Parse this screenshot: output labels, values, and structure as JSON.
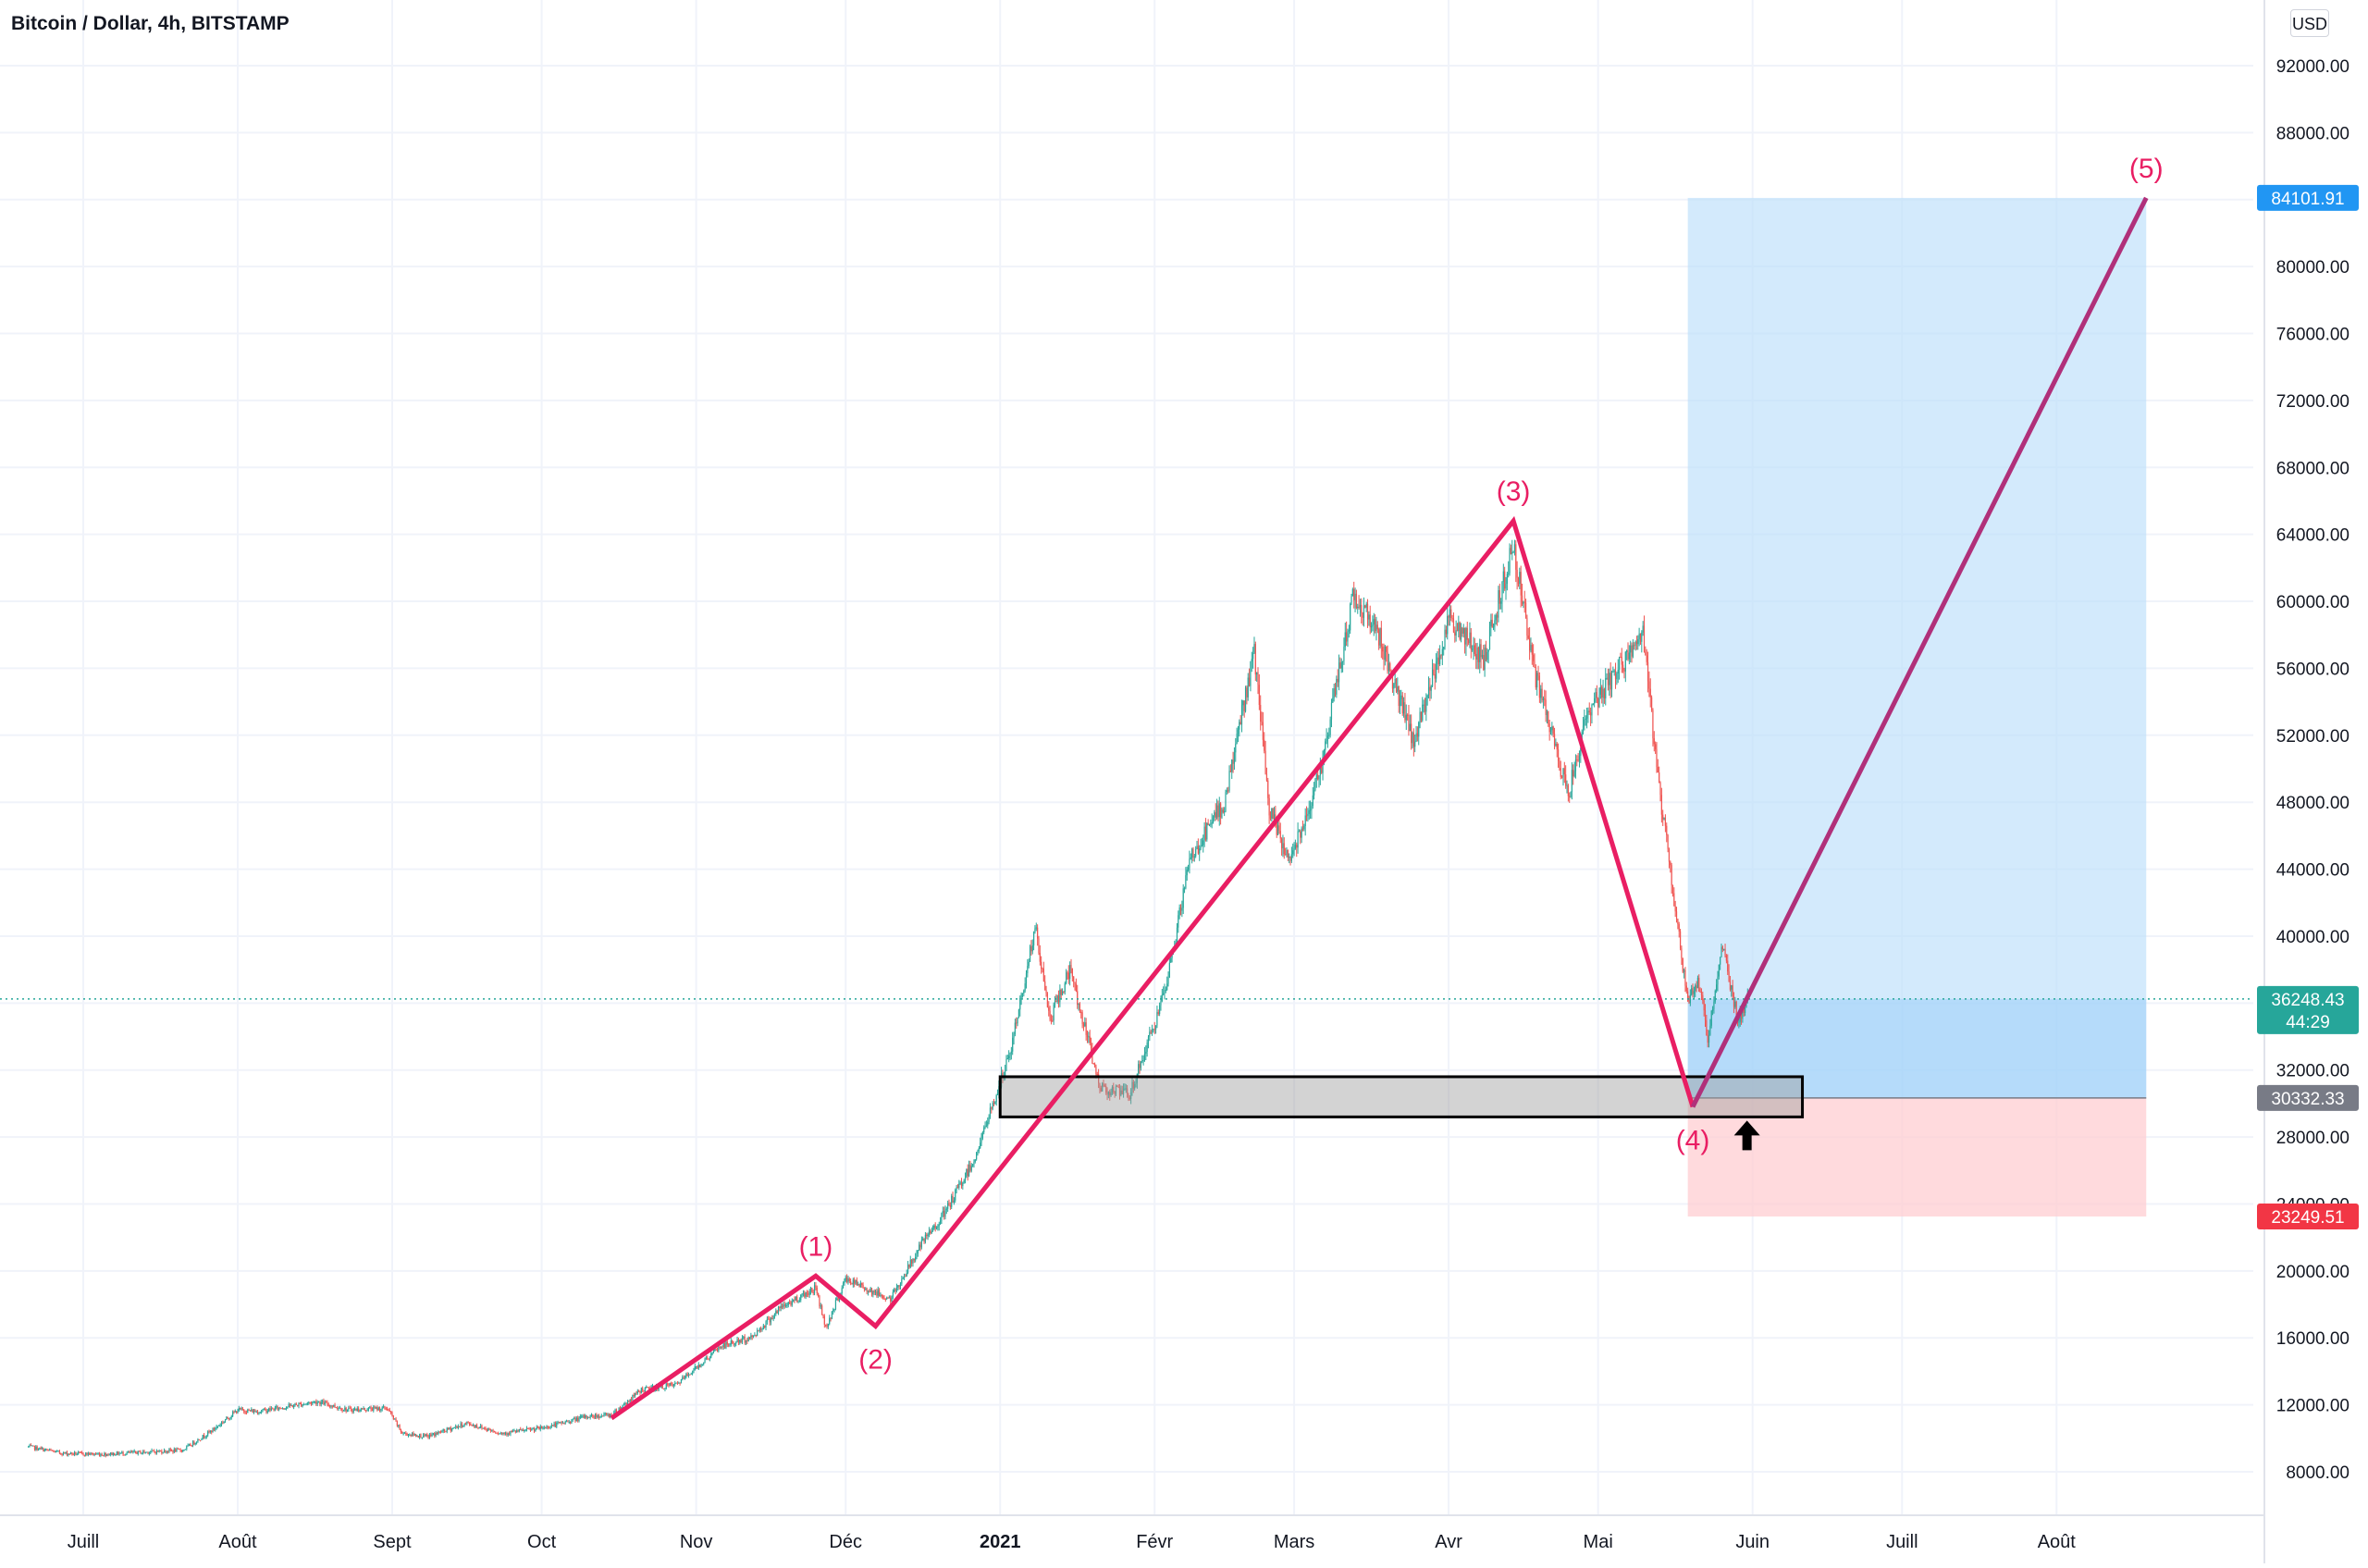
{
  "header": {
    "title": "Bitcoin / Dollar, 4h, BITSTAMP",
    "currency_button": "USD"
  },
  "chart_data": {
    "type": "candlestick",
    "title": "Bitcoin / Dollar, 4h, BITSTAMP",
    "currency": "USD",
    "ylim": [
      4800,
      95000
    ],
    "y_ticks": [
      {
        "value": 8000,
        "label": "8000.00"
      },
      {
        "value": 12000,
        "label": "12000.00"
      },
      {
        "value": 16000,
        "label": "16000.00"
      },
      {
        "value": 20000,
        "label": "20000.00"
      },
      {
        "value": 24000,
        "label": "24000.00"
      },
      {
        "value": 28000,
        "label": "28000.00"
      },
      {
        "value": 32000,
        "label": "32000.00"
      },
      {
        "value": 40000,
        "label": "40000.00"
      },
      {
        "value": 44000,
        "label": "44000.00"
      },
      {
        "value": 48000,
        "label": "48000.00"
      },
      {
        "value": 52000,
        "label": "52000.00"
      },
      {
        "value": 56000,
        "label": "56000.00"
      },
      {
        "value": 60000,
        "label": "60000.00"
      },
      {
        "value": 64000,
        "label": "64000.00"
      },
      {
        "value": 68000,
        "label": "68000.00"
      },
      {
        "value": 72000,
        "label": "72000.00"
      },
      {
        "value": 76000,
        "label": "76000.00"
      },
      {
        "value": 80000,
        "label": "80000.00"
      },
      {
        "value": 88000,
        "label": "88000.00"
      },
      {
        "value": 92000,
        "label": "92000.00"
      }
    ],
    "x_ticks": [
      {
        "date": "2020-07-01",
        "label": "Juill",
        "bold": false
      },
      {
        "date": "2020-08-01",
        "label": "Août",
        "bold": false
      },
      {
        "date": "2020-09-01",
        "label": "Sept",
        "bold": false
      },
      {
        "date": "2020-10-01",
        "label": "Oct",
        "bold": false
      },
      {
        "date": "2020-11-01",
        "label": "Nov",
        "bold": false
      },
      {
        "date": "2020-12-01",
        "label": "Déc",
        "bold": false
      },
      {
        "date": "2021-01-01",
        "label": "2021",
        "bold": true
      },
      {
        "date": "2021-02-01",
        "label": "Févr",
        "bold": false
      },
      {
        "date": "2021-03-01",
        "label": "Mars",
        "bold": false
      },
      {
        "date": "2021-04-01",
        "label": "Avr",
        "bold": false
      },
      {
        "date": "2021-05-01",
        "label": "Mai",
        "bold": false
      },
      {
        "date": "2021-06-01",
        "label": "Juin",
        "bold": false
      },
      {
        "date": "2021-07-01",
        "label": "Juill",
        "bold": false
      },
      {
        "date": "2021-08-01",
        "label": "Août",
        "bold": false
      }
    ],
    "price_path": [
      [
        "2020-06-20",
        9500
      ],
      [
        "2020-06-27",
        9100
      ],
      [
        "2020-07-05",
        9050
      ],
      [
        "2020-07-15",
        9200
      ],
      [
        "2020-07-21",
        9300
      ],
      [
        "2020-07-27",
        10500
      ],
      [
        "2020-08-01",
        11700
      ],
      [
        "2020-08-05",
        11600
      ],
      [
        "2020-08-17",
        12200
      ],
      [
        "2020-08-23",
        11700
      ],
      [
        "2020-08-31",
        11800
      ],
      [
        "2020-09-03",
        10300
      ],
      [
        "2020-09-08",
        10100
      ],
      [
        "2020-09-16",
        10900
      ],
      [
        "2020-09-23",
        10300
      ],
      [
        "2020-10-01",
        10600
      ],
      [
        "2020-10-10",
        11300
      ],
      [
        "2020-10-15",
        11400
      ],
      [
        "2020-10-21",
        12900
      ],
      [
        "2020-10-28",
        13200
      ],
      [
        "2020-11-06",
        15500
      ],
      [
        "2020-11-12",
        16000
      ],
      [
        "2020-11-18",
        17800
      ],
      [
        "2020-11-25",
        19000
      ],
      [
        "2020-11-27",
        16600
      ],
      [
        "2020-12-01",
        19500
      ],
      [
        "2020-12-10",
        18300
      ],
      [
        "2020-12-16",
        21500
      ],
      [
        "2020-12-21",
        23500
      ],
      [
        "2020-12-27",
        26800
      ],
      [
        "2021-01-03",
        33000
      ],
      [
        "2021-01-08",
        40500
      ],
      [
        "2021-01-11",
        35000
      ],
      [
        "2021-01-15",
        38000
      ],
      [
        "2021-01-21",
        31000
      ],
      [
        "2021-01-27",
        30500
      ],
      [
        "2021-02-03",
        36500
      ],
      [
        "2021-02-08",
        44500
      ],
      [
        "2021-02-15",
        48000
      ],
      [
        "2021-02-21",
        57000
      ],
      [
        "2021-02-24",
        47500
      ],
      [
        "2021-02-28",
        44500
      ],
      [
        "2021-03-06",
        49500
      ],
      [
        "2021-03-13",
        60500
      ],
      [
        "2021-03-18",
        58000
      ],
      [
        "2021-03-25",
        51500
      ],
      [
        "2021-04-01",
        59000
      ],
      [
        "2021-04-08",
        56500
      ],
      [
        "2021-04-14",
        63500
      ],
      [
        "2021-04-18",
        56000
      ],
      [
        "2021-04-25",
        48500
      ],
      [
        "2021-04-29",
        53500
      ],
      [
        "2021-05-04",
        55500
      ],
      [
        "2021-05-10",
        58000
      ],
      [
        "2021-05-13",
        49500
      ],
      [
        "2021-05-19",
        36000
      ],
      [
        "2021-05-21",
        37500
      ],
      [
        "2021-05-23",
        34000
      ],
      [
        "2021-05-26",
        39500
      ],
      [
        "2021-05-29",
        35000
      ],
      [
        "2021-05-31",
        36248.43
      ]
    ],
    "wave_points": [
      {
        "label": "(1)",
        "date": "2020-11-25",
        "value": 19700,
        "label_pos": "above"
      },
      {
        "label": "(2)",
        "date": "2020-12-07",
        "value": 16700,
        "label_pos": "below"
      },
      {
        "label": "(3)",
        "date": "2021-04-14",
        "value": 64800,
        "label_pos": "above"
      },
      {
        "label": "(4)",
        "date": "2021-05-20",
        "value": 29800,
        "label_pos": "below"
      },
      {
        "label": "(5)",
        "date": "2021-08-19",
        "value": 84101.91,
        "label_pos": "above"
      }
    ],
    "wave_start": {
      "date": "2020-10-15",
      "value": 11200
    },
    "support_zone": {
      "from_date": "2021-01-01",
      "to_date": "2021-06-11",
      "low": 29200,
      "high": 31600
    },
    "position": {
      "from_date": "2021-05-19",
      "to_date": "2021-08-19",
      "entry": 30332.33,
      "target": 84101.91,
      "stop": 23249.51
    },
    "current_price": {
      "value": 36248.43,
      "countdown": "44:29"
    },
    "price_labels": [
      {
        "value": 84101.91,
        "text": "84101.91",
        "color": "#2196f3"
      },
      {
        "value": 30332.33,
        "text": "30332.33",
        "color": "#787b86"
      },
      {
        "value": 23249.51,
        "text": "23249.51",
        "color": "#f23645"
      }
    ],
    "colors": {
      "up": "#26a69a",
      "down": "#ef5350",
      "wave": "#e91e63",
      "projection": "#b0307a",
      "target_zone": "#bbdefb",
      "stop_zone": "#ffcdd2",
      "current_price": "#26a69a"
    }
  }
}
